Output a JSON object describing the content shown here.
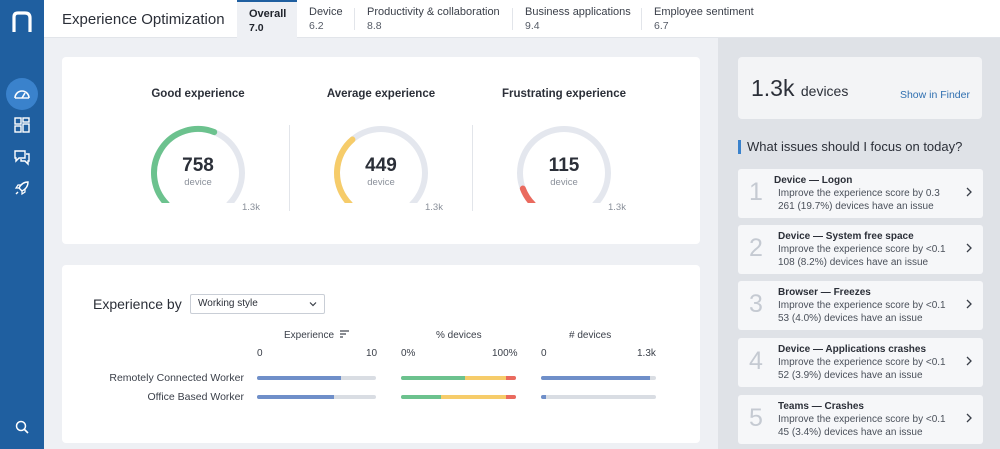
{
  "app": {
    "title": "Experience Optimization"
  },
  "tabs": [
    {
      "label": "Overall",
      "score": "7.0",
      "active": true
    },
    {
      "label": "Device",
      "score": "6.2"
    },
    {
      "label": "Productivity & collaboration",
      "score": "8.8"
    },
    {
      "label": "Business applications",
      "score": "9.4"
    },
    {
      "label": "Employee sentiment",
      "score": "6.7"
    }
  ],
  "rail": {
    "icons": [
      "nexthink-logo",
      "dashboard-gauge-icon",
      "layout-grid-icon",
      "chat-bubbles-icon",
      "rocket-icon",
      "search-icon"
    ]
  },
  "gauges": [
    {
      "title": "Good experience",
      "value": "758",
      "unit": "device",
      "max": "1.3k",
      "fraction": 0.58,
      "color": "#6cc28e"
    },
    {
      "title": "Average experience",
      "value": "449",
      "unit": "device",
      "max": "1.3k",
      "fraction": 0.35,
      "color": "#f6cc6a"
    },
    {
      "title": "Frustrating experience",
      "value": "115",
      "unit": "device",
      "max": "1.3k",
      "fraction": 0.09,
      "color": "#ea6a5e"
    }
  ],
  "breakdown": {
    "label": "Experience by",
    "select": "Working style",
    "columns": [
      {
        "header": "Experience",
        "min": "0",
        "max": "10"
      },
      {
        "header": "% devices",
        "min": "0%",
        "max": "100%"
      },
      {
        "header": "# devices",
        "min": "0",
        "max": "1.3k"
      }
    ],
    "rows": [
      {
        "label": "Remotely Connected Worker",
        "experience": 7.1,
        "pct": [
          0.56,
          0.35,
          0.09
        ],
        "devices": 0.95
      },
      {
        "label": "Office Based Worker",
        "experience": 6.5,
        "pct": [
          0.35,
          0.56,
          0.09
        ],
        "devices": 0.04
      }
    ],
    "colors": {
      "blue": "#6f8fc9",
      "green": "#6cc28e",
      "yellow": "#f6cc6a",
      "red": "#ea6a5e"
    }
  },
  "summary": {
    "count": "1.3k",
    "unit": "devices",
    "link": "Show in Finder"
  },
  "focus": {
    "question": "What issues should I focus on today?",
    "issues": [
      {
        "num": "1",
        "title": "Device — Logon",
        "line1": "Improve the experience score by 0.3",
        "line2": "261 (19.7%) devices have an issue"
      },
      {
        "num": "2",
        "title": "Device — System free space",
        "line1": "Improve the experience score by <0.1",
        "line2": "108 (8.2%) devices have an issue"
      },
      {
        "num": "3",
        "title": "Browser — Freezes",
        "line1": "Improve the experience score by <0.1",
        "line2": "53 (4.0%) devices have an issue"
      },
      {
        "num": "4",
        "title": "Device — Applications crashes",
        "line1": "Improve the experience score by <0.1",
        "line2": "52 (3.9%) devices have an issue"
      },
      {
        "num": "5",
        "title": "Teams — Crashes",
        "line1": "Improve the experience score by <0.1",
        "line2": "45 (3.4%) devices have an issue"
      }
    ]
  }
}
